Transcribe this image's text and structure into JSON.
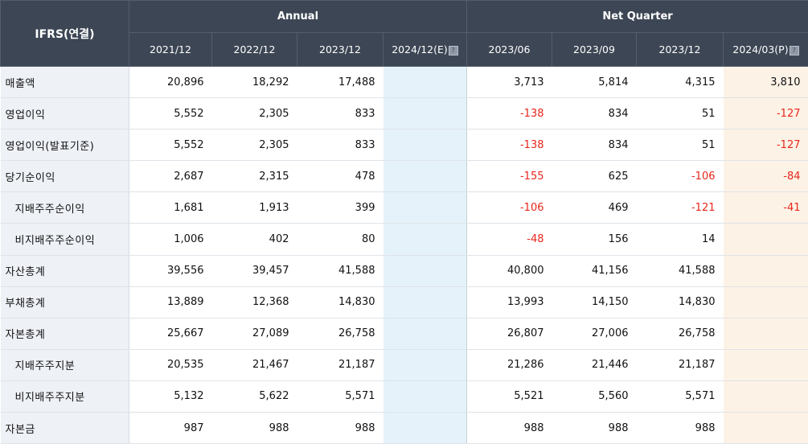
{
  "header": {
    "corner": "IFRS(연결)",
    "groups": {
      "annual": "Annual",
      "quarter": "Net Quarter"
    },
    "columns": [
      "2021/12",
      "2022/12",
      "2023/12",
      "2024/12(E)",
      "2023/06",
      "2023/09",
      "2023/12",
      "2024/03(P)"
    ],
    "help_icon": "?"
  },
  "rows": [
    {
      "label": "매출액",
      "values": [
        "20,896",
        "18,292",
        "17,488",
        "",
        "3,713",
        "5,814",
        "4,315",
        "3,810"
      ]
    },
    {
      "label": "영업이익",
      "values": [
        "5,552",
        "2,305",
        "833",
        "",
        "-138",
        "834",
        "51",
        "-127"
      ]
    },
    {
      "label": "영업이익(발표기준)",
      "values": [
        "5,552",
        "2,305",
        "833",
        "",
        "-138",
        "834",
        "51",
        "-127"
      ]
    },
    {
      "label": "당기순이익",
      "values": [
        "2,687",
        "2,315",
        "478",
        "",
        "-155",
        "625",
        "-106",
        "-84"
      ]
    },
    {
      "label": "지배주주순이익",
      "values": [
        "1,681",
        "1,913",
        "399",
        "",
        "-106",
        "469",
        "-121",
        "-41"
      ]
    },
    {
      "label": "비지배주주순이익",
      "values": [
        "1,006",
        "402",
        "80",
        "",
        "-48",
        "156",
        "14",
        ""
      ]
    },
    {
      "label": "자산총계",
      "values": [
        "39,556",
        "39,457",
        "41,588",
        "",
        "40,800",
        "41,156",
        "41,588",
        ""
      ]
    },
    {
      "label": "부채총계",
      "values": [
        "13,889",
        "12,368",
        "14,830",
        "",
        "13,993",
        "14,150",
        "14,830",
        ""
      ]
    },
    {
      "label": "자본총계",
      "values": [
        "25,667",
        "27,089",
        "26,758",
        "",
        "26,807",
        "27,006",
        "26,758",
        ""
      ]
    },
    {
      "label": "지배주주지분",
      "values": [
        "20,535",
        "21,467",
        "21,187",
        "",
        "21,286",
        "21,446",
        "21,187",
        ""
      ]
    },
    {
      "label": "비지배주주지분",
      "values": [
        "5,132",
        "5,622",
        "5,571",
        "",
        "5,521",
        "5,560",
        "5,571",
        ""
      ]
    },
    {
      "label": "자본금",
      "values": [
        "987",
        "988",
        "988",
        "",
        "988",
        "988",
        "988",
        ""
      ]
    }
  ],
  "colors": {
    "header_bg": "#3d4654",
    "label_bg": "#eef1f6",
    "estimate_bg": "#e5f2fa",
    "provisional_bg": "#fdf2e6",
    "negative": "#e8261c"
  }
}
